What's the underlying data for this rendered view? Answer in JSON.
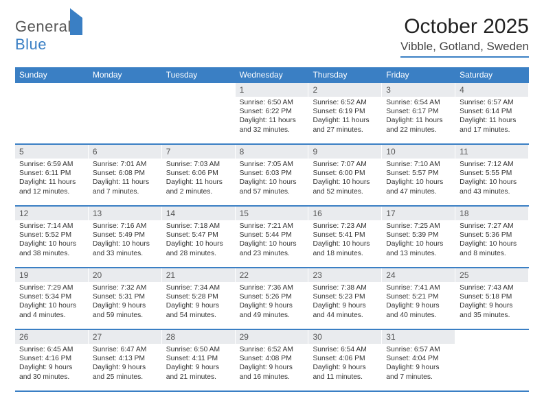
{
  "logo": {
    "word1": "General",
    "word2": "Blue"
  },
  "title": "October 2025",
  "subtitle": "Vibble, Gotland, Sweden",
  "colors": {
    "brand_blue": "#3a7fc4",
    "daynum_bg": "#e9ebee",
    "text": "#333333",
    "title_text": "#222222",
    "page_bg": "#ffffff"
  },
  "weekdays": [
    "Sunday",
    "Monday",
    "Tuesday",
    "Wednesday",
    "Thursday",
    "Friday",
    "Saturday"
  ],
  "weeks": [
    [
      {
        "day": "",
        "sunrise": "",
        "sunset": "",
        "daylight": ""
      },
      {
        "day": "",
        "sunrise": "",
        "sunset": "",
        "daylight": ""
      },
      {
        "day": "",
        "sunrise": "",
        "sunset": "",
        "daylight": ""
      },
      {
        "day": "1",
        "sunrise": "Sunrise: 6:50 AM",
        "sunset": "Sunset: 6:22 PM",
        "daylight": "Daylight: 11 hours and 32 minutes."
      },
      {
        "day": "2",
        "sunrise": "Sunrise: 6:52 AM",
        "sunset": "Sunset: 6:19 PM",
        "daylight": "Daylight: 11 hours and 27 minutes."
      },
      {
        "day": "3",
        "sunrise": "Sunrise: 6:54 AM",
        "sunset": "Sunset: 6:17 PM",
        "daylight": "Daylight: 11 hours and 22 minutes."
      },
      {
        "day": "4",
        "sunrise": "Sunrise: 6:57 AM",
        "sunset": "Sunset: 6:14 PM",
        "daylight": "Daylight: 11 hours and 17 minutes."
      }
    ],
    [
      {
        "day": "5",
        "sunrise": "Sunrise: 6:59 AM",
        "sunset": "Sunset: 6:11 PM",
        "daylight": "Daylight: 11 hours and 12 minutes."
      },
      {
        "day": "6",
        "sunrise": "Sunrise: 7:01 AM",
        "sunset": "Sunset: 6:08 PM",
        "daylight": "Daylight: 11 hours and 7 minutes."
      },
      {
        "day": "7",
        "sunrise": "Sunrise: 7:03 AM",
        "sunset": "Sunset: 6:06 PM",
        "daylight": "Daylight: 11 hours and 2 minutes."
      },
      {
        "day": "8",
        "sunrise": "Sunrise: 7:05 AM",
        "sunset": "Sunset: 6:03 PM",
        "daylight": "Daylight: 10 hours and 57 minutes."
      },
      {
        "day": "9",
        "sunrise": "Sunrise: 7:07 AM",
        "sunset": "Sunset: 6:00 PM",
        "daylight": "Daylight: 10 hours and 52 minutes."
      },
      {
        "day": "10",
        "sunrise": "Sunrise: 7:10 AM",
        "sunset": "Sunset: 5:57 PM",
        "daylight": "Daylight: 10 hours and 47 minutes."
      },
      {
        "day": "11",
        "sunrise": "Sunrise: 7:12 AM",
        "sunset": "Sunset: 5:55 PM",
        "daylight": "Daylight: 10 hours and 43 minutes."
      }
    ],
    [
      {
        "day": "12",
        "sunrise": "Sunrise: 7:14 AM",
        "sunset": "Sunset: 5:52 PM",
        "daylight": "Daylight: 10 hours and 38 minutes."
      },
      {
        "day": "13",
        "sunrise": "Sunrise: 7:16 AM",
        "sunset": "Sunset: 5:49 PM",
        "daylight": "Daylight: 10 hours and 33 minutes."
      },
      {
        "day": "14",
        "sunrise": "Sunrise: 7:18 AM",
        "sunset": "Sunset: 5:47 PM",
        "daylight": "Daylight: 10 hours and 28 minutes."
      },
      {
        "day": "15",
        "sunrise": "Sunrise: 7:21 AM",
        "sunset": "Sunset: 5:44 PM",
        "daylight": "Daylight: 10 hours and 23 minutes."
      },
      {
        "day": "16",
        "sunrise": "Sunrise: 7:23 AM",
        "sunset": "Sunset: 5:41 PM",
        "daylight": "Daylight: 10 hours and 18 minutes."
      },
      {
        "day": "17",
        "sunrise": "Sunrise: 7:25 AM",
        "sunset": "Sunset: 5:39 PM",
        "daylight": "Daylight: 10 hours and 13 minutes."
      },
      {
        "day": "18",
        "sunrise": "Sunrise: 7:27 AM",
        "sunset": "Sunset: 5:36 PM",
        "daylight": "Daylight: 10 hours and 8 minutes."
      }
    ],
    [
      {
        "day": "19",
        "sunrise": "Sunrise: 7:29 AM",
        "sunset": "Sunset: 5:34 PM",
        "daylight": "Daylight: 10 hours and 4 minutes."
      },
      {
        "day": "20",
        "sunrise": "Sunrise: 7:32 AM",
        "sunset": "Sunset: 5:31 PM",
        "daylight": "Daylight: 9 hours and 59 minutes."
      },
      {
        "day": "21",
        "sunrise": "Sunrise: 7:34 AM",
        "sunset": "Sunset: 5:28 PM",
        "daylight": "Daylight: 9 hours and 54 minutes."
      },
      {
        "day": "22",
        "sunrise": "Sunrise: 7:36 AM",
        "sunset": "Sunset: 5:26 PM",
        "daylight": "Daylight: 9 hours and 49 minutes."
      },
      {
        "day": "23",
        "sunrise": "Sunrise: 7:38 AM",
        "sunset": "Sunset: 5:23 PM",
        "daylight": "Daylight: 9 hours and 44 minutes."
      },
      {
        "day": "24",
        "sunrise": "Sunrise: 7:41 AM",
        "sunset": "Sunset: 5:21 PM",
        "daylight": "Daylight: 9 hours and 40 minutes."
      },
      {
        "day": "25",
        "sunrise": "Sunrise: 7:43 AM",
        "sunset": "Sunset: 5:18 PM",
        "daylight": "Daylight: 9 hours and 35 minutes."
      }
    ],
    [
      {
        "day": "26",
        "sunrise": "Sunrise: 6:45 AM",
        "sunset": "Sunset: 4:16 PM",
        "daylight": "Daylight: 9 hours and 30 minutes."
      },
      {
        "day": "27",
        "sunrise": "Sunrise: 6:47 AM",
        "sunset": "Sunset: 4:13 PM",
        "daylight": "Daylight: 9 hours and 25 minutes."
      },
      {
        "day": "28",
        "sunrise": "Sunrise: 6:50 AM",
        "sunset": "Sunset: 4:11 PM",
        "daylight": "Daylight: 9 hours and 21 minutes."
      },
      {
        "day": "29",
        "sunrise": "Sunrise: 6:52 AM",
        "sunset": "Sunset: 4:08 PM",
        "daylight": "Daylight: 9 hours and 16 minutes."
      },
      {
        "day": "30",
        "sunrise": "Sunrise: 6:54 AM",
        "sunset": "Sunset: 4:06 PM",
        "daylight": "Daylight: 9 hours and 11 minutes."
      },
      {
        "day": "31",
        "sunrise": "Sunrise: 6:57 AM",
        "sunset": "Sunset: 4:04 PM",
        "daylight": "Daylight: 9 hours and 7 minutes."
      },
      {
        "day": "",
        "sunrise": "",
        "sunset": "",
        "daylight": ""
      }
    ]
  ]
}
